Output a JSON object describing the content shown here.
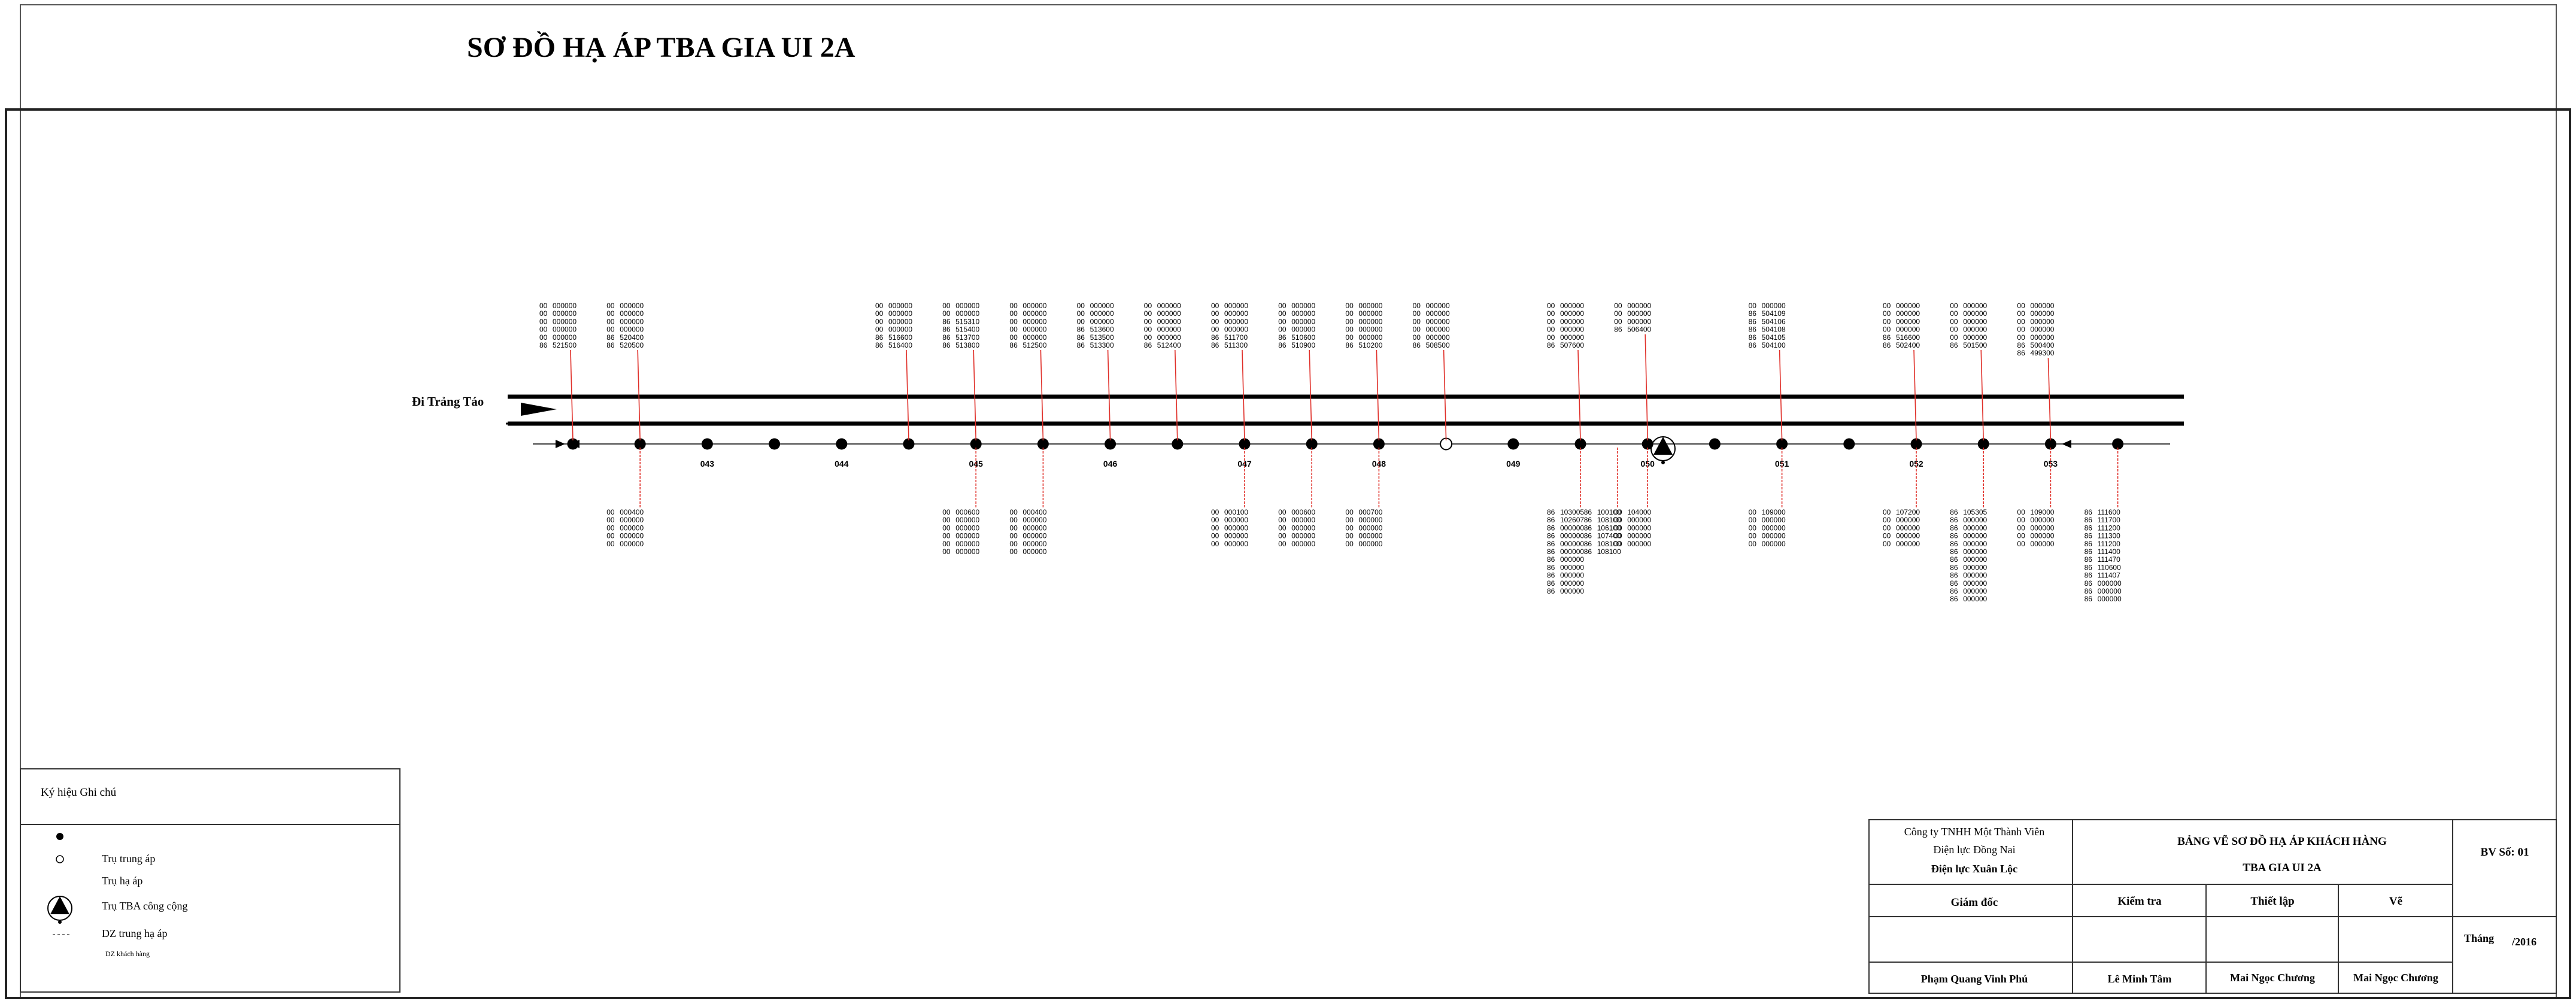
{
  "title": "SƠ ĐỒ HẠ ÁP TBA GIA UI 2A",
  "direction_label": "Đi Trảng Táo",
  "pole_labels": {
    "2": "043",
    "4": "044",
    "6": "045",
    "8": "046",
    "10": "047",
    "12": "048",
    "14": "049",
    "16": "050",
    "18": "051",
    "20": "052",
    "22": "053"
  },
  "open_circle_pole": 13,
  "transformer_pole": 16.5,
  "meter_groups_top": [
    {
      "pole": 0,
      "prefix": "00 00 00 00 00 86",
      "codes": "000000\n000000\n000000\n000000\n000000\n521500"
    },
    {
      "pole": 1,
      "prefix": "00 00 00 00 86 86",
      "codes": "000000\n000000\n000000\n000000\n520400\n520500"
    },
    {
      "pole": 5,
      "prefix": "00 00 00 00 86 86",
      "codes": "000000\n000000\n000000\n000000\n516600\n516400"
    },
    {
      "pole": 6,
      "prefix": "00 00 86 86 86 86",
      "codes": "000000\n000000\n515310\n515400\n513700\n513800"
    },
    {
      "pole": 7,
      "prefix": "00 00 00 00 00 86",
      "codes": "000000\n000000\n000000\n000000\n000000\n512500"
    },
    {
      "pole": 8,
      "prefix": "00 00 00 86 86 86",
      "codes": "000000\n000000\n000000\n513600\n513500\n513300"
    },
    {
      "pole": 9,
      "prefix": "00 00 00 00 00 86",
      "codes": "000000\n000000\n000000\n000000\n000000\n512400"
    },
    {
      "pole": 10,
      "prefix": "00 00 00 00 86 86",
      "codes": "000000\n000000\n000000\n000000\n511700\n511300"
    },
    {
      "pole": 11,
      "prefix": "00 00 00 00 86 86",
      "codes": "000000\n000000\n000000\n000000\n510600\n510900"
    },
    {
      "pole": 12,
      "prefix": "00 00 00 00 00 86",
      "codes": "000000\n000000\n000000\n000000\n000000\n510200"
    },
    {
      "pole": 13,
      "prefix": "00 00 00 00 00 86",
      "codes": "000000\n000000\n000000\n000000\n000000\n508500"
    },
    {
      "pole": 15,
      "prefix": "00 00 00 00 00 86",
      "codes": "000000\n000000\n000000\n000000\n000000\n507600"
    },
    {
      "pole": 16,
      "prefix": "00 00 00 86",
      "codes": "000000\n000000\n000000\n506400"
    },
    {
      "pole": 18,
      "prefix": "00 86 86 86 86 86",
      "codes": "000000\n504109\n504106\n504108\n504105\n504100"
    },
    {
      "pole": 20,
      "prefix": "00 00 00 00 86 86",
      "codes": "000000\n000000\n000000\n000000\n516600\n502400"
    },
    {
      "pole": 21,
      "prefix": "00 00 00 00 00 86",
      "codes": "000000\n000000\n000000\n000000\n000000\n501500"
    },
    {
      "pole": 22,
      "prefix": "00 00 00 00 00 86 86",
      "codes": "000000\n000000\n000000\n000000\n000000\n500400\n499300"
    }
  ],
  "meter_groups_bottom": [
    {
      "pole": 1,
      "prefix": "00 00 00 00 00",
      "codes": "000400\n000000\n000000\n000000\n000000"
    },
    {
      "pole": 6,
      "prefix": "00 00 00 00 00 00",
      "codes": "000600\n000000\n000000\n000000\n000000\n000000"
    },
    {
      "pole": 7,
      "prefix": "00 00 00 00 00 00",
      "codes": "000400\n000000\n000000\n000000\n000000\n000000"
    },
    {
      "pole": 10,
      "prefix": "00 00 00 00 00",
      "codes": "000100\n000000\n000000\n000000\n000000"
    },
    {
      "pole": 11,
      "prefix": "00 00 00 00 00",
      "codes": "000600\n000000\n000000\n000000\n000000"
    },
    {
      "pole": 12,
      "prefix": "00 00 00 00 00",
      "codes": "000700\n000000\n000000\n000000\n000000"
    },
    {
      "pole": 15,
      "prefix": "86 86 86 86 86 86 86 86 86 86 86",
      "codes": "103005\n102607\n000000\n000000\n000000\n000000\n000000\n000000\n000000\n000000\n000000"
    },
    {
      "pole": 15.55,
      "prefix": "86 86 86 86 86 86",
      "codes": "100100\n108100\n106100\n107400\n108100\n108100"
    },
    {
      "pole": 16,
      "prefix": "00 00 00 00 00",
      "codes": "104000\n000000\n000000\n000000\n000000"
    },
    {
      "pole": 18,
      "prefix": "00 00 00 00 00",
      "codes": "109000\n000000\n000000\n000000\n000000"
    },
    {
      "pole": 20,
      "prefix": "00 00 00 00 00",
      "codes": "107200\n000000\n000000\n000000\n000000"
    },
    {
      "pole": 21,
      "prefix": "86 86 86 86 86 86 86 86 86 86 86 86",
      "codes": "105305\n000000\n000000\n000000\n000000\n000000\n000000\n000000\n000000\n000000\n000000\n000000"
    },
    {
      "pole": 22,
      "prefix": "00 00 00 00 00",
      "codes": "109000\n000000\n000000\n000000\n000000"
    },
    {
      "pole": 23,
      "prefix": "86 86 86 86 86 86 86 86 86 86 86 86",
      "codes": "111600\n111700\n111200\n111300\n111200\n111400\n111470\n110600\n111407\n000000\n000000\n000000"
    }
  ],
  "legend": {
    "header": "Ký hiệu  Ghi chú",
    "items": [
      {
        "symbol": "filled-dot-icon",
        "label": ""
      },
      {
        "symbol": "open-circle-icon",
        "label": "Trụ trung áp"
      },
      {
        "symbol": "",
        "label": "Trụ hạ áp"
      },
      {
        "symbol": "transformer-triangle-icon",
        "label": "Trụ TBA công cộng"
      },
      {
        "symbol": "dash-line-icon",
        "label": "DZ trung hạ áp"
      },
      {
        "symbol": "",
        "label": "DZ khách hàng"
      }
    ]
  },
  "title_block": {
    "company_line1": "Công ty TNHH Một Thành Viên",
    "company_line2": "Điện lực Đồng Nai",
    "company_line3": "Điện lực Xuân Lộc",
    "drawing_title1": "BẢNG VẼ SƠ ĐỒ HẠ ÁP KHÁCH HÀNG",
    "drawing_title2": "TBA GIA UI 2A",
    "bv_label": "BV Số: 01",
    "roles": [
      "Giám đốc",
      "Kiểm tra",
      "Thiết lập",
      "Vẽ"
    ],
    "names": [
      "Phạm Quang Vinh Phú",
      "Lê Minh Tâm",
      "Mai Ngọc Chương",
      "Mai Ngọc Chương"
    ],
    "month_label": "Tháng",
    "year_label": "/2016"
  },
  "colors": {
    "line": "#000000",
    "drop": "#e0302a"
  }
}
